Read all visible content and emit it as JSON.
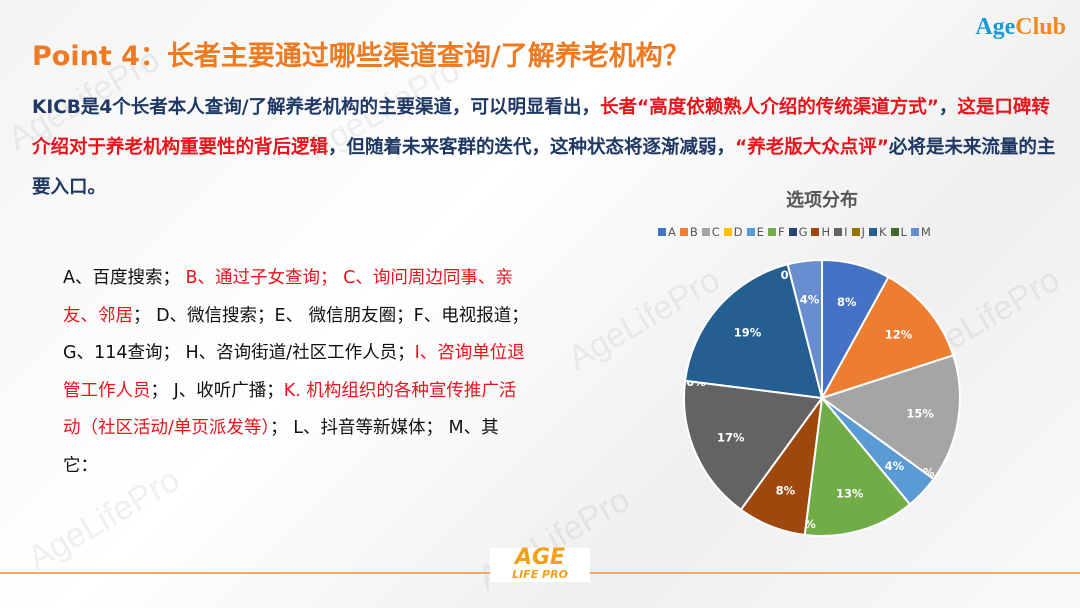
{
  "brand_logo": {
    "part1": "Age",
    "part2": "Club"
  },
  "title": "Point 4：长者主要通过哪些渠道查询/了解养老机构？",
  "paragraph": [
    {
      "text": "KICB是4个长者本人查询/了解养老机构的主要渠道，可以明显看出，",
      "red": false
    },
    {
      "text": "长者“高度依赖熟人介绍的传统渠道方式”",
      "red": true
    },
    {
      "text": "，",
      "red": false
    },
    {
      "text": "这是口碑转介绍对于养老机构重要性的背后逻辑",
      "red": true
    },
    {
      "text": "，但随着未来客群的迭代，这种状态将逐渐减弱，",
      "red": false
    },
    {
      "text": "“养老版大众点评”",
      "red": true
    },
    {
      "text": "必将是未来流量的主要入口。",
      "red": false
    }
  ],
  "options": [
    {
      "text": "A、百度搜索； ",
      "red": false
    },
    {
      "text": "B、通过子女查询； C、询问周边同事、亲友、邻居",
      "red": true
    },
    {
      "text": "； D、微信搜索；E、 微信朋友圈；F、电视报道； G、114查询； H、咨询街道/社区工作人员；",
      "red": false
    },
    {
      "text": "I、咨询单位退管工作人员",
      "red": true
    },
    {
      "text": "； J、收听广播；",
      "red": false
    },
    {
      "text": "K. 机构组织的各种宣传推广活动（社区活动/单页派发等）",
      "red": true
    },
    {
      "text": "； L、抖音等新媒体； M、其它：",
      "red": false
    }
  ],
  "watermark": "AgeLifePro",
  "footer_logo": {
    "main": "AGE",
    "sub": "LIFE PRO"
  },
  "chart_data": {
    "type": "pie",
    "title": "选项分布",
    "legend_position": "top",
    "categories": [
      "A",
      "B",
      "C",
      "D",
      "E",
      "F",
      "G",
      "H",
      "I",
      "J",
      "K",
      "L",
      "M"
    ],
    "values": [
      8,
      12,
      15,
      0,
      4,
      13,
      0,
      8,
      17,
      0,
      19,
      0,
      4
    ],
    "labels": [
      "8%",
      "12%",
      "15%",
      "0%",
      "4%",
      "13%",
      "0%",
      "8%",
      "17%",
      "0%",
      "19%",
      "0%",
      "4%"
    ],
    "colors": [
      "#4472C4",
      "#ED7D31",
      "#A5A5A5",
      "#FFC000",
      "#5B9BD5",
      "#70AD47",
      "#264478",
      "#9E480E",
      "#636363",
      "#997300",
      "#255E91",
      "#43682B",
      "#698ED0"
    ]
  }
}
